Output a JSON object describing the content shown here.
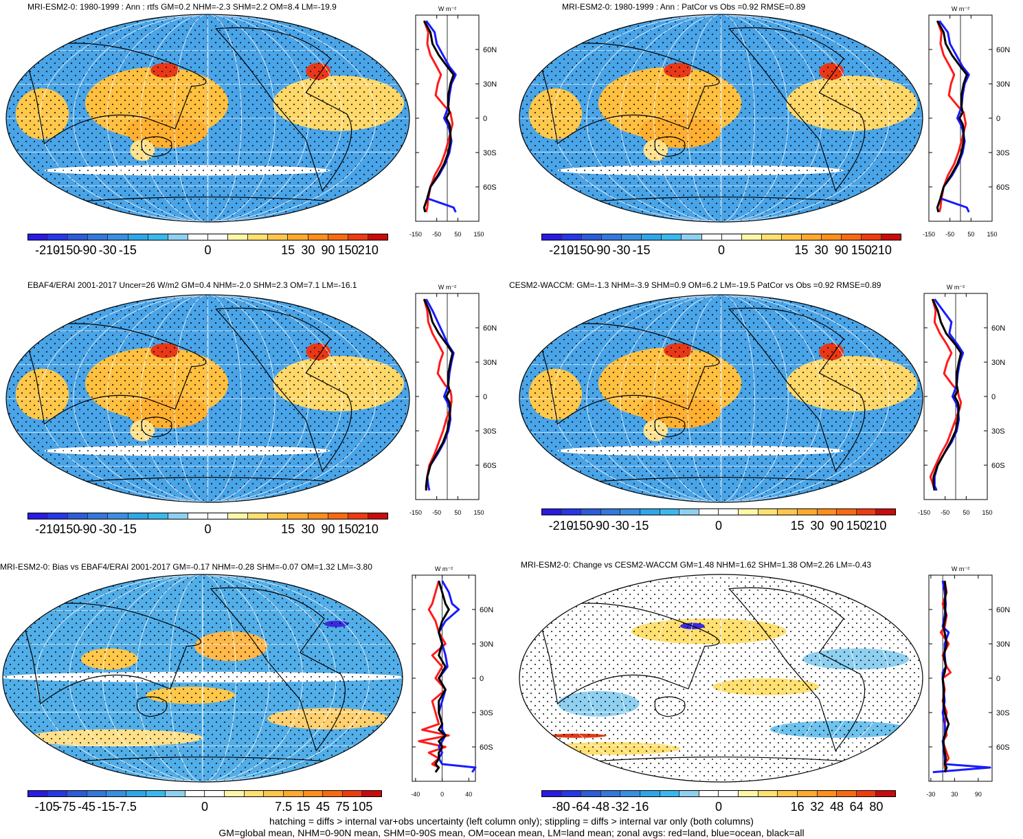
{
  "footer": {
    "line1": "hatching = diffs > internal var+obs uncertainty (left column only); stippling = diffs > internal var only (both columns)",
    "line2": "GM=global mean, NHM=0-90N mean, SHM=0-90S mean, OM=ocean mean, LM=land mean; zonal avgs: red=land, blue=ocean, black=all"
  },
  "colors": {
    "land_line": "#ff1a1a",
    "ocean_line": "#1a1aff",
    "all_line": "#000000",
    "colormap": [
      "#2a1be0",
      "#2737e6",
      "#2d5cd8",
      "#3478dc",
      "#3b8fe0",
      "#2fa6e8",
      "#3ab8ee",
      "#8fd0f0",
      "#ffffff",
      "#ffffff",
      "#fff6a8",
      "#ffe070",
      "#ffc64a",
      "#ffaa2e",
      "#ff8e1e",
      "#f86a12",
      "#ee3c12",
      "#c80c0c"
    ]
  },
  "panels": [
    {
      "title": "MRI-ESM2-0: 1980-1999 : Ann : rtfs GM=0.2 NHM=-2.3 SHM=2.2 OM=8.4 LM=-19.9",
      "map": "mean",
      "hatch": true,
      "colorbar": [
        "-210",
        "-150",
        "-90",
        "-30",
        "-15",
        "0",
        "15",
        "30",
        "90",
        "150",
        "210"
      ],
      "zonal": {
        "unit": "W m⁻²",
        "xlim": [
          -150,
          150
        ],
        "xticks": [
          "-150",
          "-50",
          "50",
          "150"
        ],
        "xvals": [
          -150,
          -50,
          50,
          150
        ],
        "yticks": [
          "60N",
          "30N",
          "0",
          "30S",
          "60S"
        ],
        "ylim": [
          -90,
          90
        ],
        "lat": [
          85,
          75,
          65,
          55,
          45,
          38,
          30,
          20,
          10,
          5,
          0,
          -5,
          -10,
          -20,
          -30,
          -40,
          -50,
          -60,
          -70,
          -78,
          -82
        ],
        "land": [
          -110,
          -90,
          -95,
          -80,
          -50,
          -30,
          -45,
          -55,
          -10,
          15,
          20,
          25,
          18,
          5,
          -10,
          -30,
          -60,
          -80,
          -90,
          -95,
          -100
        ],
        "ocean": [
          -100,
          -60,
          -50,
          -20,
          10,
          40,
          20,
          10,
          5,
          -5,
          -15,
          0,
          10,
          20,
          10,
          -10,
          -40,
          -80,
          -95,
          30,
          40
        ],
        "all": [
          -110,
          -80,
          -70,
          -40,
          0,
          30,
          15,
          5,
          5,
          10,
          -5,
          10,
          15,
          15,
          5,
          -15,
          -45,
          -80,
          -95,
          -110,
          -105
        ]
      }
    },
    {
      "title": "MRI-ESM2-0: 1980-1999 : Ann : PatCor vs Obs =0.92 RMSE=0.89",
      "map": "mean",
      "hatch": false,
      "colorbar": [
        "-210",
        "-150",
        "-90",
        "-30",
        "-15",
        "0",
        "15",
        "30",
        "90",
        "150",
        "210"
      ],
      "zonal": {
        "unit": "W m⁻²",
        "xlim": [
          -150,
          150
        ],
        "xticks": [
          "-150",
          "-50",
          "50",
          "150"
        ],
        "xvals": [
          -150,
          -50,
          50,
          150
        ],
        "yticks": [
          "60N",
          "30N",
          "0",
          "30S",
          "60S"
        ],
        "ylim": [
          -90,
          90
        ],
        "lat": [
          85,
          75,
          65,
          55,
          45,
          38,
          30,
          20,
          10,
          5,
          0,
          -5,
          -10,
          -20,
          -30,
          -40,
          -50,
          -60,
          -70,
          -78,
          -82
        ],
        "land": [
          -110,
          -90,
          -95,
          -80,
          -50,
          -30,
          -45,
          -55,
          -10,
          15,
          20,
          25,
          18,
          5,
          -10,
          -30,
          -60,
          -80,
          -90,
          -95,
          -100
        ],
        "ocean": [
          -100,
          -60,
          -50,
          -20,
          10,
          40,
          20,
          10,
          5,
          -5,
          -15,
          0,
          10,
          20,
          10,
          -10,
          -40,
          -80,
          -95,
          30,
          40
        ],
        "all": [
          -110,
          -80,
          -70,
          -40,
          0,
          30,
          15,
          5,
          5,
          10,
          -5,
          10,
          15,
          15,
          5,
          -15,
          -45,
          -80,
          -95,
          -110,
          -105
        ]
      }
    },
    {
      "title": "EBAF4/ERAI 2001-2017 Uncer=26 W/m2 GM=0.4 NHM=-2.0 SHM=2.3 OM=7.1 LM=-16.1",
      "map": "mean",
      "hatch": true,
      "colorbar": [
        "-210",
        "-150",
        "-90",
        "-30",
        "-15",
        "0",
        "15",
        "30",
        "90",
        "150",
        "210"
      ],
      "zonal": {
        "unit": "W m⁻²",
        "xlim": [
          -150,
          150
        ],
        "xticks": [
          "-150",
          "-50",
          "50",
          "150"
        ],
        "xvals": [
          -150,
          -50,
          50,
          150
        ],
        "yticks": [
          "60N",
          "30N",
          "0",
          "30S",
          "60S"
        ],
        "ylim": [
          -90,
          90
        ],
        "lat": [
          85,
          75,
          65,
          55,
          45,
          38,
          30,
          20,
          10,
          5,
          0,
          -5,
          -10,
          -20,
          -30,
          -40,
          -50,
          -60,
          -70,
          -78,
          -82
        ],
        "land": [
          -110,
          -95,
          -90,
          -70,
          -40,
          -20,
          -35,
          -45,
          -10,
          15,
          20,
          20,
          15,
          -5,
          -20,
          -40,
          -60,
          -85,
          -95,
          -100,
          -100
        ],
        "ocean": [
          -100,
          -70,
          -45,
          -20,
          5,
          30,
          20,
          10,
          5,
          -5,
          -15,
          0,
          10,
          15,
          5,
          -15,
          -45,
          -80,
          -95,
          -90,
          -85
        ],
        "all": [
          -110,
          -85,
          -70,
          -40,
          0,
          25,
          15,
          5,
          5,
          10,
          -5,
          10,
          15,
          10,
          0,
          -20,
          -50,
          -80,
          -95,
          -100,
          -100
        ]
      }
    },
    {
      "title": "CESM2-WACCM: GM=-1.3 NHM=-3.9 SHM=0.9 OM=6.2 LM=-19.5 PatCor vs Obs =0.92 RMSE=0.89",
      "map": "mean",
      "hatch": false,
      "colorbar": [
        "-210",
        "-150",
        "-90",
        "-30",
        "-15",
        "0",
        "15",
        "30",
        "90",
        "150",
        "210"
      ],
      "zonal": {
        "unit": "W m⁻²",
        "xlim": [
          -150,
          150
        ],
        "xticks": [
          "-150",
          "-50",
          "50",
          "150"
        ],
        "xvals": [
          -150,
          -50,
          50,
          150
        ],
        "yticks": [
          "60N",
          "30N",
          "0",
          "30S",
          "60S"
        ],
        "ylim": [
          -90,
          90
        ],
        "lat": [
          85,
          75,
          65,
          55,
          45,
          38,
          30,
          20,
          10,
          5,
          0,
          -5,
          -10,
          -20,
          -30,
          -40,
          -50,
          -60,
          -70,
          -78,
          -82
        ],
        "land": [
          -110,
          -95,
          -100,
          -75,
          -40,
          -20,
          -40,
          -55,
          -15,
          10,
          15,
          25,
          20,
          0,
          -20,
          -40,
          -70,
          -95,
          -120,
          -105,
          -100
        ],
        "ocean": [
          -100,
          -60,
          -20,
          -30,
          10,
          35,
          20,
          10,
          5,
          -5,
          -15,
          0,
          10,
          15,
          5,
          -20,
          -55,
          -85,
          -100,
          -100,
          -90
        ],
        "all": [
          -110,
          -85,
          -70,
          -45,
          0,
          25,
          15,
          5,
          5,
          10,
          -5,
          10,
          15,
          10,
          0,
          -25,
          -55,
          -85,
          -105,
          -105,
          -100
        ]
      }
    },
    {
      "title": "MRI-ESM2-0: Bias vs EBAF4/ERAI 2001-2017 GM=-0.17 NHM=-0.28 SHM=-0.07 OM=1.32 LM=-3.80",
      "map": "bias",
      "hatch": true,
      "colorbar": [
        "-105",
        "-75",
        "-45",
        "-15",
        "-7.5",
        "0",
        "7.5",
        "15",
        "45",
        "75",
        "105"
      ],
      "zonal": {
        "unit": "W m⁻²",
        "xlim": [
          -45,
          50
        ],
        "xticks": [
          "-40",
          "0",
          "40"
        ],
        "xvals": [
          -40,
          0,
          40
        ],
        "yticks": [
          "60N",
          "30N",
          "0",
          "30S",
          "60S"
        ],
        "ylim": [
          -90,
          90
        ],
        "lat": [
          85,
          75,
          65,
          60,
          50,
          40,
          30,
          20,
          10,
          0,
          -10,
          -20,
          -30,
          -40,
          -45,
          -50,
          -55,
          -60,
          -65,
          -70,
          -75,
          -78,
          -82
        ],
        "land": [
          -5,
          -10,
          -15,
          -20,
          -10,
          -5,
          5,
          -15,
          0,
          -10,
          5,
          -15,
          -10,
          -5,
          -30,
          10,
          -35,
          5,
          -20,
          -5,
          -15,
          -5,
          -10
        ],
        "ocean": [
          0,
          10,
          15,
          25,
          5,
          -5,
          0,
          5,
          8,
          -5,
          5,
          0,
          -5,
          0,
          0,
          5,
          0,
          -5,
          0,
          -5,
          0,
          50,
          45
        ],
        "all": [
          -5,
          0,
          5,
          10,
          0,
          -5,
          0,
          -5,
          5,
          -5,
          5,
          -5,
          -5,
          0,
          -5,
          5,
          -5,
          0,
          -5,
          -5,
          -10,
          -5,
          -10
        ]
      }
    },
    {
      "title": "MRI-ESM2-0: Change vs CESM2-WACCM GM=1.48 NHM=1.62 SHM=1.38 OM=2.26 LM=-0.43",
      "map": "change",
      "hatch": false,
      "colorbar": [
        "-80",
        "-64",
        "-48",
        "-32",
        "-16",
        "0",
        "16",
        "32",
        "48",
        "64",
        "80"
      ],
      "zonal": {
        "unit": "W m⁻²",
        "xlim": [
          -35,
          125
        ],
        "xticks": [
          "-30",
          "30",
          "90"
        ],
        "xvals": [
          -30,
          30,
          90
        ],
        "yticks": [
          "60N",
          "30N",
          "0",
          "30S",
          "60S"
        ],
        "ylim": [
          -90,
          90
        ],
        "lat": [
          85,
          75,
          65,
          55,
          45,
          40,
          30,
          20,
          10,
          5,
          0,
          -10,
          -20,
          -30,
          -40,
          -50,
          -55,
          -60,
          -70,
          -75,
          -78,
          -82
        ],
        "land": [
          5,
          10,
          0,
          10,
          5,
          -5,
          15,
          0,
          10,
          20,
          0,
          5,
          0,
          10,
          5,
          10,
          0,
          5,
          15,
          5,
          5,
          10
        ],
        "ocean": [
          0,
          5,
          8,
          5,
          0,
          15,
          5,
          5,
          8,
          0,
          0,
          2,
          5,
          0,
          5,
          5,
          0,
          2,
          5,
          5,
          120,
          -25
        ],
        "all": [
          5,
          8,
          5,
          8,
          2,
          5,
          10,
          3,
          8,
          5,
          0,
          3,
          2,
          5,
          15,
          5,
          2,
          3,
          8,
          5,
          10,
          5
        ]
      }
    }
  ]
}
